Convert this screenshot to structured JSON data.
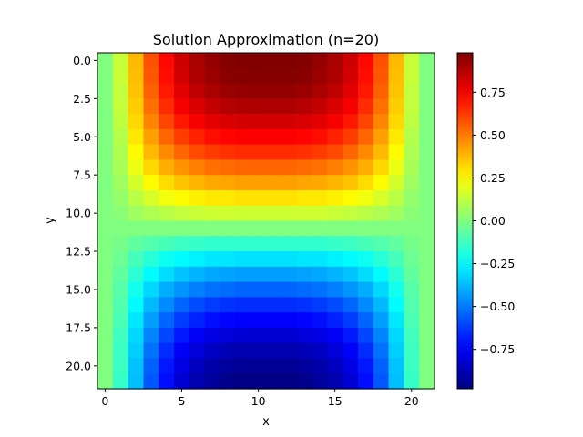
{
  "chart_data": {
    "type": "heatmap",
    "title": "Solution Approximation (n=20)",
    "xlabel": "x",
    "ylabel": "y",
    "grid_size": 22,
    "xlim": [
      -0.5,
      21.5
    ],
    "ylim": [
      21.5,
      -0.5
    ],
    "x_ticks": [
      0,
      5,
      10,
      15,
      20
    ],
    "x_tick_labels": [
      "0",
      "5",
      "10",
      "15",
      "20"
    ],
    "y_ticks": [
      0.0,
      2.5,
      5.0,
      7.5,
      10.0,
      12.5,
      15.0,
      17.5,
      20.0
    ],
    "y_tick_labels": [
      "0.0",
      "2.5",
      "5.0",
      "7.5",
      "10.0",
      "12.5",
      "15.0",
      "17.5",
      "20.0"
    ],
    "colormap": "jet",
    "vmin": -0.98,
    "vmax": 0.98,
    "colorbar_ticks": [
      -0.75,
      -0.5,
      -0.25,
      0.0,
      0.25,
      0.5,
      0.75
    ],
    "colorbar_tick_labels": [
      "−0.75",
      "−0.50",
      "−0.25",
      "0.00",
      "0.25",
      "0.50",
      "0.75"
    ],
    "grid_on": false,
    "values": [
      [
        0.0,
        0.14,
        0.38,
        0.58,
        0.72,
        0.83,
        0.9,
        0.94,
        0.97,
        0.98,
        0.98,
        0.98,
        0.98,
        0.97,
        0.94,
        0.9,
        0.83,
        0.72,
        0.58,
        0.38,
        0.14,
        0.0
      ],
      [
        0.0,
        0.14,
        0.37,
        0.57,
        0.71,
        0.82,
        0.89,
        0.93,
        0.96,
        0.97,
        0.97,
        0.97,
        0.97,
        0.96,
        0.93,
        0.89,
        0.82,
        0.71,
        0.57,
        0.37,
        0.14,
        0.0
      ],
      [
        0.0,
        0.13,
        0.36,
        0.55,
        0.69,
        0.79,
        0.86,
        0.9,
        0.93,
        0.94,
        0.94,
        0.94,
        0.94,
        0.93,
        0.9,
        0.86,
        0.79,
        0.69,
        0.55,
        0.36,
        0.13,
        0.0
      ],
      [
        0.0,
        0.13,
        0.34,
        0.52,
        0.65,
        0.75,
        0.81,
        0.85,
        0.88,
        0.89,
        0.89,
        0.89,
        0.89,
        0.88,
        0.85,
        0.81,
        0.75,
        0.65,
        0.52,
        0.34,
        0.13,
        0.0
      ],
      [
        0.0,
        0.12,
        0.32,
        0.48,
        0.6,
        0.69,
        0.75,
        0.79,
        0.81,
        0.82,
        0.82,
        0.82,
        0.82,
        0.81,
        0.79,
        0.75,
        0.69,
        0.6,
        0.48,
        0.32,
        0.12,
        0.0
      ],
      [
        0.0,
        0.1,
        0.29,
        0.43,
        0.54,
        0.62,
        0.67,
        0.71,
        0.73,
        0.74,
        0.74,
        0.74,
        0.74,
        0.73,
        0.71,
        0.67,
        0.62,
        0.54,
        0.43,
        0.29,
        0.1,
        0.0
      ],
      [
        0.0,
        0.09,
        0.25,
        0.38,
        0.47,
        0.54,
        0.59,
        0.62,
        0.64,
        0.65,
        0.65,
        0.65,
        0.65,
        0.64,
        0.62,
        0.59,
        0.54,
        0.47,
        0.38,
        0.25,
        0.09,
        0.0
      ],
      [
        0.0,
        0.08,
        0.21,
        0.32,
        0.4,
        0.45,
        0.49,
        0.52,
        0.53,
        0.54,
        0.54,
        0.54,
        0.54,
        0.53,
        0.52,
        0.49,
        0.45,
        0.4,
        0.32,
        0.21,
        0.08,
        0.0
      ],
      [
        0.0,
        0.06,
        0.16,
        0.25,
        0.31,
        0.36,
        0.39,
        0.41,
        0.42,
        0.43,
        0.43,
        0.43,
        0.43,
        0.42,
        0.41,
        0.39,
        0.36,
        0.31,
        0.25,
        0.16,
        0.06,
        0.0
      ],
      [
        0.0,
        0.04,
        0.11,
        0.17,
        0.22,
        0.25,
        0.27,
        0.29,
        0.29,
        0.3,
        0.3,
        0.3,
        0.3,
        0.29,
        0.29,
        0.27,
        0.25,
        0.22,
        0.17,
        0.11,
        0.04,
        0.0
      ],
      [
        0.0,
        0.02,
        0.06,
        0.09,
        0.11,
        0.13,
        0.14,
        0.15,
        0.15,
        0.15,
        0.15,
        0.15,
        0.15,
        0.15,
        0.15,
        0.14,
        0.13,
        0.11,
        0.09,
        0.06,
        0.02,
        0.0
      ],
      [
        0.0,
        0.0,
        0.0,
        0.0,
        0.0,
        0.0,
        0.0,
        0.0,
        0.0,
        0.0,
        0.0,
        0.0,
        0.0,
        0.0,
        0.0,
        0.0,
        0.0,
        0.0,
        0.0,
        0.0,
        0.0,
        0.0
      ],
      [
        0.0,
        -0.02,
        -0.06,
        -0.09,
        -0.11,
        -0.13,
        -0.14,
        -0.15,
        -0.15,
        -0.15,
        -0.15,
        -0.15,
        -0.15,
        -0.15,
        -0.15,
        -0.14,
        -0.13,
        -0.11,
        -0.09,
        -0.06,
        -0.02,
        0.0
      ],
      [
        0.0,
        -0.04,
        -0.11,
        -0.17,
        -0.22,
        -0.25,
        -0.27,
        -0.29,
        -0.29,
        -0.3,
        -0.3,
        -0.3,
        -0.3,
        -0.29,
        -0.29,
        -0.27,
        -0.25,
        -0.22,
        -0.17,
        -0.11,
        -0.04,
        0.0
      ],
      [
        0.0,
        -0.06,
        -0.16,
        -0.25,
        -0.31,
        -0.36,
        -0.39,
        -0.41,
        -0.42,
        -0.43,
        -0.43,
        -0.43,
        -0.43,
        -0.42,
        -0.41,
        -0.39,
        -0.36,
        -0.31,
        -0.25,
        -0.16,
        -0.06,
        0.0
      ],
      [
        0.0,
        -0.08,
        -0.21,
        -0.32,
        -0.4,
        -0.45,
        -0.49,
        -0.52,
        -0.53,
        -0.54,
        -0.54,
        -0.54,
        -0.54,
        -0.53,
        -0.52,
        -0.49,
        -0.45,
        -0.4,
        -0.32,
        -0.21,
        -0.08,
        0.0
      ],
      [
        0.0,
        -0.09,
        -0.25,
        -0.38,
        -0.47,
        -0.54,
        -0.59,
        -0.62,
        -0.64,
        -0.65,
        -0.65,
        -0.65,
        -0.65,
        -0.64,
        -0.62,
        -0.59,
        -0.54,
        -0.47,
        -0.38,
        -0.25,
        -0.09,
        0.0
      ],
      [
        0.0,
        -0.1,
        -0.29,
        -0.43,
        -0.54,
        -0.62,
        -0.67,
        -0.71,
        -0.73,
        -0.74,
        -0.74,
        -0.74,
        -0.74,
        -0.73,
        -0.71,
        -0.67,
        -0.62,
        -0.54,
        -0.43,
        -0.29,
        -0.1,
        0.0
      ],
      [
        0.0,
        -0.12,
        -0.32,
        -0.48,
        -0.6,
        -0.69,
        -0.75,
        -0.79,
        -0.81,
        -0.82,
        -0.82,
        -0.82,
        -0.82,
        -0.81,
        -0.79,
        -0.75,
        -0.69,
        -0.6,
        -0.48,
        -0.32,
        -0.12,
        0.0
      ],
      [
        0.0,
        -0.13,
        -0.34,
        -0.52,
        -0.65,
        -0.75,
        -0.81,
        -0.85,
        -0.88,
        -0.89,
        -0.89,
        -0.89,
        -0.89,
        -0.88,
        -0.85,
        -0.81,
        -0.75,
        -0.65,
        -0.52,
        -0.34,
        -0.13,
        0.0
      ],
      [
        0.0,
        -0.13,
        -0.36,
        -0.55,
        -0.69,
        -0.79,
        -0.86,
        -0.9,
        -0.93,
        -0.94,
        -0.94,
        -0.94,
        -0.94,
        -0.93,
        -0.9,
        -0.86,
        -0.79,
        -0.69,
        -0.55,
        -0.36,
        -0.13,
        0.0
      ],
      [
        0.0,
        -0.14,
        -0.37,
        -0.57,
        -0.71,
        -0.82,
        -0.89,
        -0.93,
        -0.96,
        -0.97,
        -0.97,
        -0.97,
        -0.97,
        -0.96,
        -0.93,
        -0.89,
        -0.82,
        -0.71,
        -0.57,
        -0.37,
        -0.14,
        0.0
      ]
    ]
  }
}
